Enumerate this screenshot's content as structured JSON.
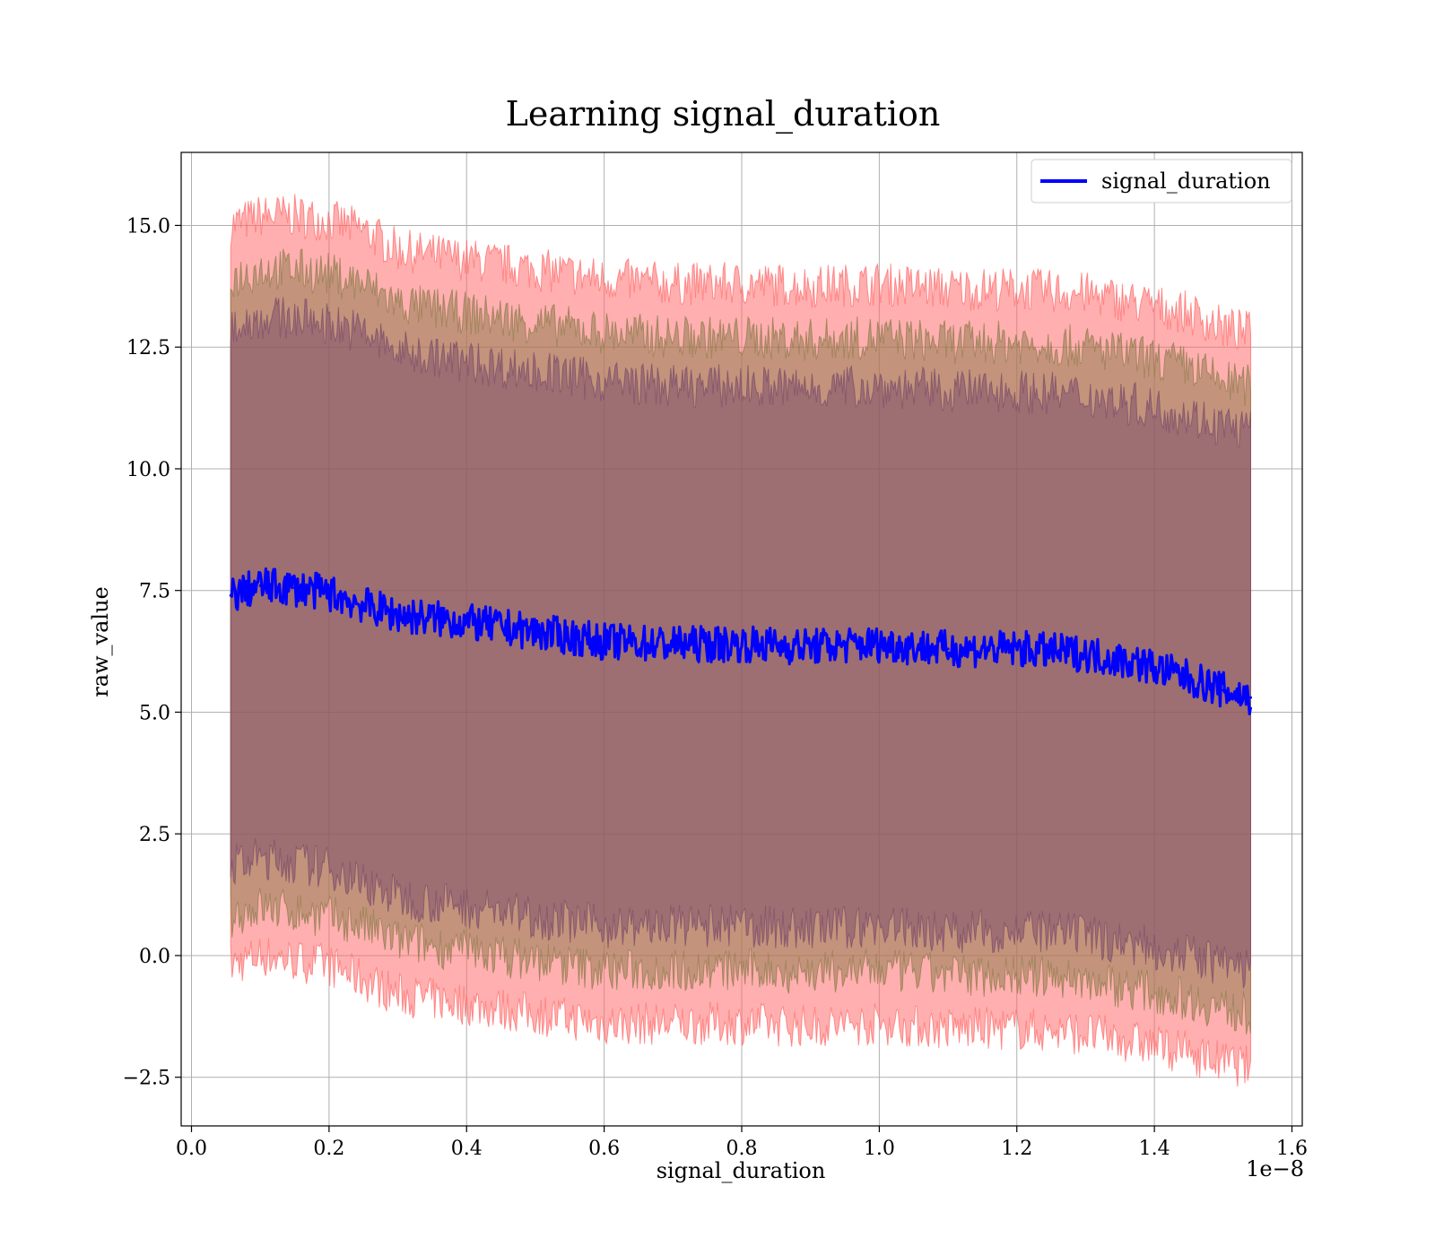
{
  "chart_data": {
    "type": "line",
    "title": "Learning signal_duration",
    "xlabel": "signal_duration",
    "ylabel": "raw_value",
    "x_offset_label": "1e−8",
    "xlim": [
      -0.015,
      1.615
    ],
    "ylim": [
      -3.5,
      16.5
    ],
    "x_ticks": [
      0.0,
      0.2,
      0.4,
      0.6,
      0.8,
      1.0,
      1.2,
      1.4,
      1.6
    ],
    "x_tick_labels": [
      "0.0",
      "0.2",
      "0.4",
      "0.6",
      "0.8",
      "1.0",
      "1.2",
      "1.4",
      "1.6"
    ],
    "y_ticks": [
      -2.5,
      0.0,
      2.5,
      5.0,
      7.5,
      10.0,
      12.5,
      15.0
    ],
    "y_tick_labels": [
      "−2.5",
      "0.0",
      "2.5",
      "5.0",
      "7.5",
      "10.0",
      "12.5",
      "15.0"
    ],
    "grid": true,
    "legend_position": "top-right",
    "series": [
      {
        "name": "signal_duration",
        "color": "#0000ff",
        "x": [
          0.057,
          0.1,
          0.15,
          0.2,
          0.25,
          0.3,
          0.4,
          0.5,
          0.6,
          0.7,
          0.8,
          0.9,
          1.0,
          1.1,
          1.2,
          1.3,
          1.38,
          1.45,
          1.5,
          1.54
        ],
        "values": [
          7.4,
          7.6,
          7.55,
          7.45,
          7.2,
          7.0,
          6.85,
          6.65,
          6.45,
          6.4,
          6.4,
          6.35,
          6.4,
          6.3,
          6.3,
          6.2,
          6.0,
          5.7,
          5.45,
          5.3
        ]
      }
    ],
    "bands": [
      {
        "color": "#ff6666",
        "x": [
          0.057,
          0.1,
          0.15,
          0.2,
          0.25,
          0.3,
          0.4,
          0.5,
          0.6,
          0.7,
          0.8,
          0.9,
          1.0,
          1.1,
          1.2,
          1.3,
          1.38,
          1.45,
          1.5,
          1.54
        ],
        "lower": [
          -0.2,
          0.0,
          -0.1,
          -0.2,
          -0.5,
          -0.8,
          -1.0,
          -1.2,
          -1.4,
          -1.4,
          -1.4,
          -1.45,
          -1.4,
          -1.5,
          -1.5,
          -1.6,
          -1.8,
          -2.0,
          -2.2,
          -2.3
        ],
        "upper": [
          15.0,
          15.2,
          15.2,
          15.1,
          14.9,
          14.5,
          14.3,
          14.1,
          13.9,
          13.8,
          13.8,
          13.75,
          13.8,
          13.7,
          13.7,
          13.6,
          13.4,
          13.2,
          12.9,
          12.8
        ]
      },
      {
        "color": "#8c7a4a",
        "x": [
          0.057,
          0.1,
          0.15,
          0.2,
          0.25,
          0.3,
          0.4,
          0.5,
          0.6,
          0.7,
          0.8,
          0.9,
          1.0,
          1.1,
          1.2,
          1.3,
          1.38,
          1.45,
          1.5,
          1.54
        ],
        "lower": [
          0.8,
          1.0,
          0.9,
          0.8,
          0.6,
          0.3,
          0.1,
          -0.1,
          -0.3,
          -0.3,
          -0.3,
          -0.35,
          -0.3,
          -0.4,
          -0.4,
          -0.5,
          -0.7,
          -0.9,
          -1.1,
          -1.2
        ],
        "upper": [
          13.9,
          14.1,
          14.1,
          14.0,
          13.8,
          13.4,
          13.2,
          13.0,
          12.8,
          12.7,
          12.7,
          12.65,
          12.7,
          12.6,
          12.6,
          12.5,
          12.3,
          12.1,
          11.8,
          11.7
        ]
      },
      {
        "color": "#7a4a6a",
        "x": [
          0.057,
          0.1,
          0.15,
          0.2,
          0.25,
          0.3,
          0.4,
          0.5,
          0.6,
          0.7,
          0.8,
          0.9,
          1.0,
          1.1,
          1.2,
          1.3,
          1.38,
          1.45,
          1.5,
          1.54
        ],
        "lower": [
          1.8,
          2.0,
          1.9,
          1.8,
          1.5,
          1.2,
          1.0,
          0.8,
          0.6,
          0.6,
          0.6,
          0.55,
          0.6,
          0.5,
          0.5,
          0.4,
          0.2,
          0.0,
          -0.2,
          -0.3
        ],
        "upper": [
          12.9,
          13.1,
          13.1,
          13.0,
          12.8,
          12.4,
          12.2,
          12.0,
          11.8,
          11.7,
          11.7,
          11.65,
          11.7,
          11.6,
          11.6,
          11.5,
          11.3,
          11.1,
          10.9,
          10.8
        ]
      }
    ]
  }
}
